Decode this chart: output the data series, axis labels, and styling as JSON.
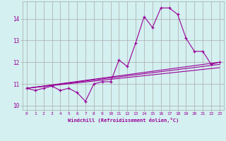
{
  "xlabel": "Windchill (Refroidissement éolien,°C)",
  "ylabel": "",
  "bg_color": "#d4f0f0",
  "grid_color": "#aaaaaa",
  "line_color": "#990099",
  "xlim": [
    -0.5,
    23.5
  ],
  "ylim": [
    9.8,
    14.8
  ],
  "xticks": [
    0,
    1,
    2,
    3,
    4,
    5,
    6,
    7,
    8,
    9,
    10,
    11,
    12,
    13,
    14,
    15,
    16,
    17,
    18,
    19,
    20,
    21,
    22,
    23
  ],
  "yticks": [
    10,
    11,
    12,
    13,
    14
  ],
  "series1_x": [
    0,
    1,
    2,
    3,
    4,
    5,
    6,
    7,
    8,
    9,
    10,
    11,
    12,
    13,
    14,
    15,
    16,
    17,
    18,
    19,
    20,
    21,
    22,
    23
  ],
  "series1_y": [
    10.8,
    10.7,
    10.8,
    10.9,
    10.7,
    10.8,
    10.6,
    10.2,
    11.0,
    11.1,
    11.1,
    12.1,
    11.8,
    12.9,
    14.1,
    13.6,
    14.5,
    14.5,
    14.2,
    13.1,
    12.5,
    12.5,
    11.9,
    12.0
  ],
  "series2_x": [
    0,
    23
  ],
  "series2_y": [
    10.8,
    12.0
  ],
  "series3_x": [
    0,
    23
  ],
  "series3_y": [
    10.8,
    11.75
  ],
  "series4_x": [
    0,
    23
  ],
  "series4_y": [
    10.8,
    11.9
  ]
}
